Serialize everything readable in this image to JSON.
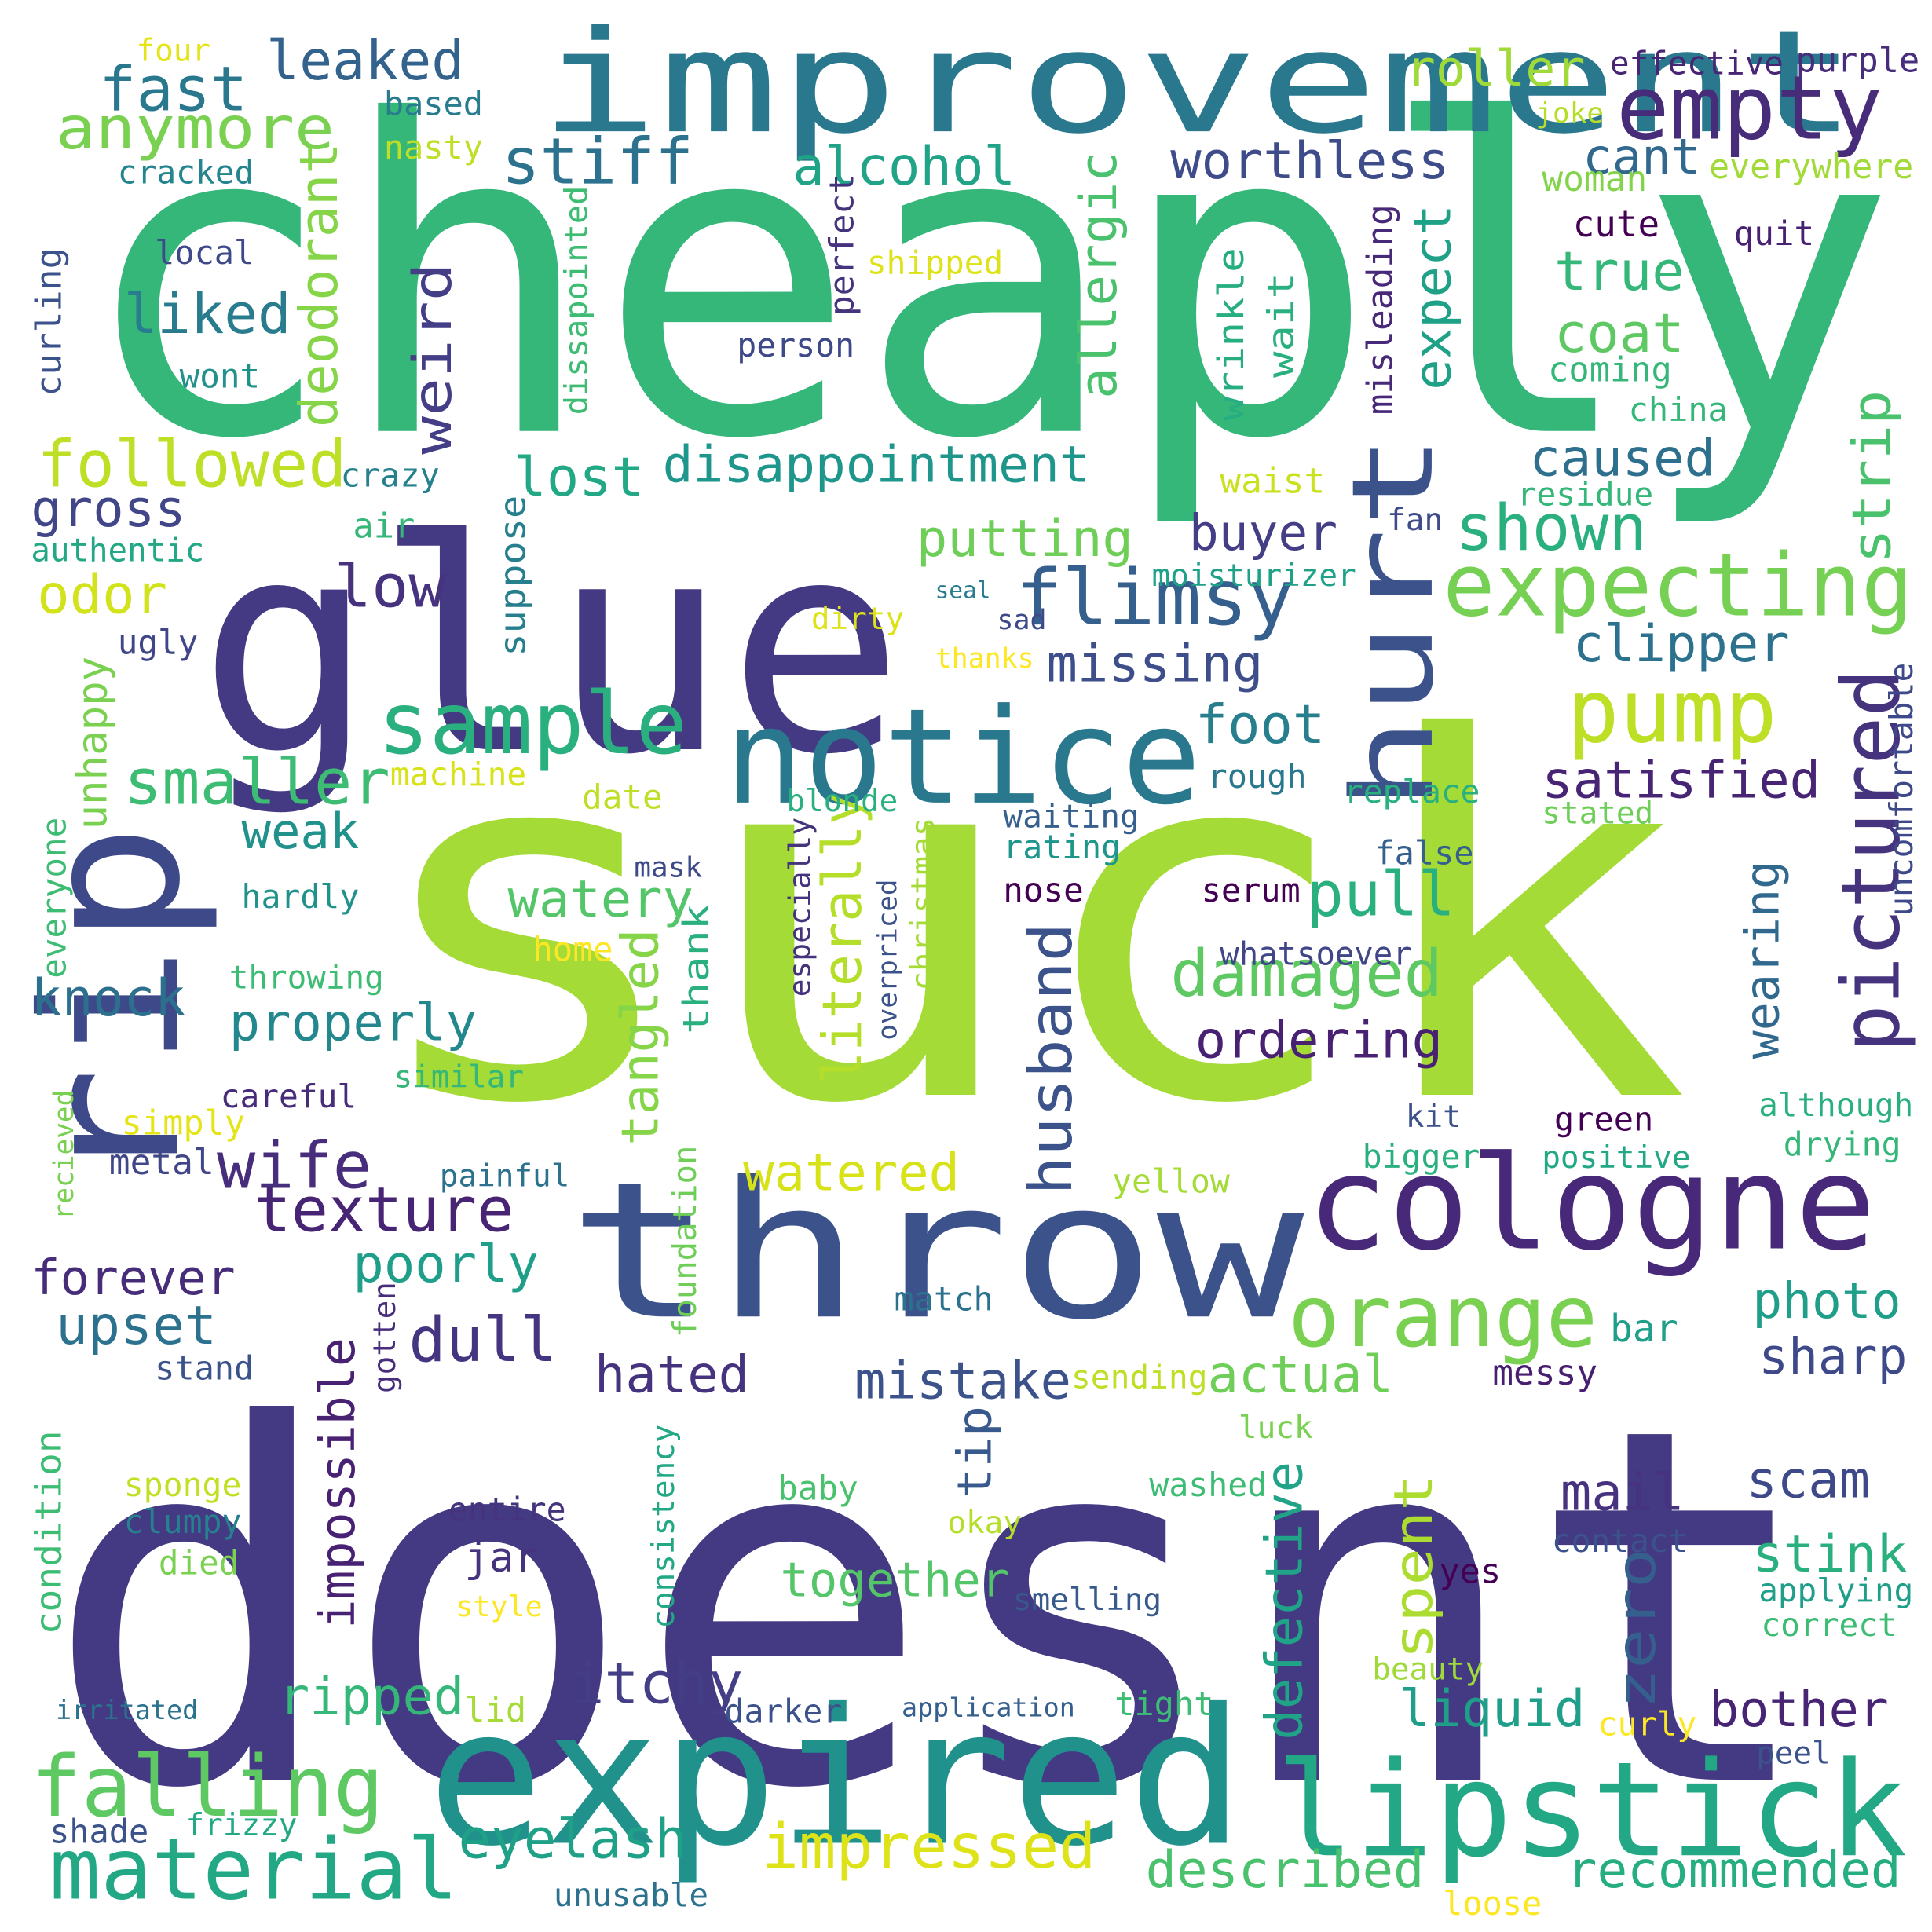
{
  "words": [
    {
      "text": "cheaply",
      "color": "#35b779"
    },
    {
      "text": "suck",
      "color": "#a5db36"
    },
    {
      "text": "doesnt",
      "color": "#443983"
    },
    {
      "text": "glue",
      "color": "#443983"
    },
    {
      "text": "improvement",
      "color": "#2a788e"
    },
    {
      "text": "throw",
      "color": "#3b528b"
    },
    {
      "text": "rip",
      "color": "#3e4989"
    },
    {
      "text": "expired",
      "color": "#21918c"
    },
    {
      "text": "lipstick",
      "color": "#22a884"
    },
    {
      "text": "notice",
      "color": "#2a788e"
    },
    {
      "text": "cologne",
      "color": "#482878"
    },
    {
      "text": "hurt",
      "color": "#3b528b"
    },
    {
      "text": "empty",
      "color": "#472c7a"
    },
    {
      "text": "orange",
      "color": "#7ad151"
    },
    {
      "text": "expecting",
      "color": "#75d054"
    },
    {
      "text": "flimsy",
      "color": "#355f8d"
    },
    {
      "text": "sample",
      "color": "#2ab07f"
    },
    {
      "text": "pump",
      "color": "#bddf26"
    },
    {
      "text": "pictured",
      "color": "#46337e"
    },
    {
      "text": "falling",
      "color": "#5ec962"
    },
    {
      "text": "material",
      "color": "#22a884"
    },
    {
      "text": "fast",
      "color": "#2a788e"
    },
    {
      "text": "anymore",
      "color": "#7ad151"
    },
    {
      "text": "leaked",
      "color": "#33638d"
    },
    {
      "text": "followed",
      "color": "#bddf26"
    },
    {
      "text": "liked",
      "color": "#287c8e"
    },
    {
      "text": "deodorant",
      "color": "#86d549"
    },
    {
      "text": "weird",
      "color": "#433e85"
    },
    {
      "text": "stiff",
      "color": "#2c728e"
    },
    {
      "text": "alcohol",
      "color": "#20a386"
    },
    {
      "text": "allergic",
      "color": "#4ac16d"
    },
    {
      "text": "worthless",
      "color": "#3e4c8a"
    },
    {
      "text": "cant",
      "color": "#31688e"
    },
    {
      "text": "roller",
      "color": "#9fda3a"
    },
    {
      "text": "true",
      "color": "#35b779"
    },
    {
      "text": "expect",
      "color": "#1fa188"
    },
    {
      "text": "coat",
      "color": "#5ec962"
    },
    {
      "text": "disappointment",
      "color": "#1f968b"
    },
    {
      "text": "lost",
      "color": "#22a884"
    },
    {
      "text": "gross",
      "color": "#404688"
    },
    {
      "text": "caused",
      "color": "#2d708e"
    },
    {
      "text": "shown",
      "color": "#2ab07f"
    },
    {
      "text": "strip",
      "color": "#4ac16d"
    },
    {
      "text": "putting",
      "color": "#6ece58"
    },
    {
      "text": "buyer",
      "color": "#433e85"
    },
    {
      "text": "clipper",
      "color": "#2c728e"
    },
    {
      "text": "missing",
      "color": "#3d4e8a"
    },
    {
      "text": "low",
      "color": "#46327e"
    },
    {
      "text": "odor",
      "color": "#d2e21b"
    },
    {
      "text": "unhappy",
      "color": "#7ad151"
    },
    {
      "text": "smaller",
      "color": "#3dbc74"
    },
    {
      "text": "weak",
      "color": "#21918c"
    },
    {
      "text": "foot",
      "color": "#277f8e"
    },
    {
      "text": "satisfied",
      "color": "#482475"
    },
    {
      "text": "pull",
      "color": "#2ab07f"
    },
    {
      "text": "watery",
      "color": "#54c568"
    },
    {
      "text": "damaged",
      "color": "#5ec962"
    },
    {
      "text": "husband",
      "color": "#3b528b"
    },
    {
      "text": "literally",
      "color": "#b5de2b"
    },
    {
      "text": "wearing",
      "color": "#31688e"
    },
    {
      "text": "knock",
      "color": "#2d708e"
    },
    {
      "text": "properly",
      "color": "#23888e"
    },
    {
      "text": "tangled",
      "color": "#86d549"
    },
    {
      "text": "ordering",
      "color": "#482173"
    },
    {
      "text": "wife",
      "color": "#472d7b"
    },
    {
      "text": "texture",
      "color": "#482475"
    },
    {
      "text": "watered",
      "color": "#d8e219"
    },
    {
      "text": "forever",
      "color": "#472c7a"
    },
    {
      "text": "poorly",
      "color": "#1f9e89"
    },
    {
      "text": "dull",
      "color": "#453581"
    },
    {
      "text": "upset",
      "color": "#2c728e"
    },
    {
      "text": "hated",
      "color": "#46337e"
    },
    {
      "text": "mistake",
      "color": "#3b528b"
    },
    {
      "text": "actual",
      "color": "#6ece58"
    },
    {
      "text": "impossible",
      "color": "#482173"
    },
    {
      "text": "tip",
      "color": "#38598c"
    },
    {
      "text": "photo",
      "color": "#1f9e89"
    },
    {
      "text": "sharp",
      "color": "#3e4989"
    },
    {
      "text": "scam",
      "color": "#3e4989"
    },
    {
      "text": "mail",
      "color": "#46327e"
    },
    {
      "text": "defective",
      "color": "#20a386"
    },
    {
      "text": "spent",
      "color": "#addc30"
    },
    {
      "text": "zero",
      "color": "#355f8d"
    },
    {
      "text": "jar",
      "color": "#46337e"
    },
    {
      "text": "together",
      "color": "#54c568"
    },
    {
      "text": "stink",
      "color": "#2ab07f"
    },
    {
      "text": "ripped",
      "color": "#35b779"
    },
    {
      "text": "itchy",
      "color": "#433e85"
    },
    {
      "text": "liquid",
      "color": "#1f9e89"
    },
    {
      "text": "bother",
      "color": "#482475"
    },
    {
      "text": "eyelash",
      "color": "#1fa188"
    },
    {
      "text": "impressed",
      "color": "#dde318"
    },
    {
      "text": "described",
      "color": "#4ac16d"
    },
    {
      "text": "recommended",
      "color": "#26ad81"
    },
    {
      "text": "four",
      "color": "#e5e419"
    },
    {
      "text": "based",
      "color": "#287c8e"
    },
    {
      "text": "nasty",
      "color": "#bddf26"
    },
    {
      "text": "cracked",
      "color": "#25858e"
    },
    {
      "text": "local",
      "color": "#3e4989"
    },
    {
      "text": "curling",
      "color": "#3b528b"
    },
    {
      "text": "wont",
      "color": "#21918c"
    },
    {
      "text": "dissapointed",
      "color": "#3fbc73"
    },
    {
      "text": "perfect",
      "color": "#46337e"
    },
    {
      "text": "shipped",
      "color": "#dde318"
    },
    {
      "text": "person",
      "color": "#3e4989"
    },
    {
      "text": "effective",
      "color": "#482475"
    },
    {
      "text": "purple",
      "color": "#472d7b"
    },
    {
      "text": "joke",
      "color": "#b5de2b"
    },
    {
      "text": "woman",
      "color": "#84d44b"
    },
    {
      "text": "everywhere",
      "color": "#a2da37"
    },
    {
      "text": "cute",
      "color": "#440154"
    },
    {
      "text": "quit",
      "color": "#482173"
    },
    {
      "text": "wrinkle",
      "color": "#26ad81"
    },
    {
      "text": "wait",
      "color": "#2ab07f"
    },
    {
      "text": "misleading",
      "color": "#482878"
    },
    {
      "text": "coming",
      "color": "#35b779"
    },
    {
      "text": "china",
      "color": "#35b779"
    },
    {
      "text": "crazy",
      "color": "#27808e"
    },
    {
      "text": "air",
      "color": "#35b779"
    },
    {
      "text": "authentic",
      "color": "#22a884"
    },
    {
      "text": "suppose",
      "color": "#277f8e"
    },
    {
      "text": "waist",
      "color": "#cae11f"
    },
    {
      "text": "fan",
      "color": "#3e4c8a"
    },
    {
      "text": "residue",
      "color": "#35b779"
    },
    {
      "text": "moisturizer",
      "color": "#1fa188"
    },
    {
      "text": "seal",
      "color": "#287c8e"
    },
    {
      "text": "sad",
      "color": "#3e4989"
    },
    {
      "text": "dirty",
      "color": "#dde318"
    },
    {
      "text": "thanks",
      "color": "#fde725"
    },
    {
      "text": "ugly",
      "color": "#404688"
    },
    {
      "text": "machine",
      "color": "#d8e219"
    },
    {
      "text": "date",
      "color": "#bddf26"
    },
    {
      "text": "blonde",
      "color": "#2ab07f"
    },
    {
      "text": "rough",
      "color": "#2a788e"
    },
    {
      "text": "replace",
      "color": "#2ab07f"
    },
    {
      "text": "stated",
      "color": "#6ece58"
    },
    {
      "text": "uncomfortable",
      "color": "#3e4989"
    },
    {
      "text": "waiting",
      "color": "#355f8d"
    },
    {
      "text": "rating",
      "color": "#1f968b"
    },
    {
      "text": "mask",
      "color": "#3e4989"
    },
    {
      "text": "nose",
      "color": "#440154"
    },
    {
      "text": "false",
      "color": "#355f8d"
    },
    {
      "text": "serum",
      "color": "#440154"
    },
    {
      "text": "everyone",
      "color": "#3dbc74"
    },
    {
      "text": "hardly",
      "color": "#21918c"
    },
    {
      "text": "especially",
      "color": "#46337e"
    },
    {
      "text": "christmas",
      "color": "#a5db36"
    },
    {
      "text": "overpriced",
      "color": "#3b528b"
    },
    {
      "text": "home",
      "color": "#fde725"
    },
    {
      "text": "thank",
      "color": "#2ab07f"
    },
    {
      "text": "whatsoever",
      "color": "#404688"
    },
    {
      "text": "throwing",
      "color": "#3dbc74"
    },
    {
      "text": "similar",
      "color": "#35b779"
    },
    {
      "text": "careful",
      "color": "#472c7a"
    },
    {
      "text": "although",
      "color": "#2ab07f"
    },
    {
      "text": "simply",
      "color": "#e5e419"
    },
    {
      "text": "green",
      "color": "#440154"
    },
    {
      "text": "recieved",
      "color": "#7ad151"
    },
    {
      "text": "kit",
      "color": "#3b528b"
    },
    {
      "text": "metal",
      "color": "#404688"
    },
    {
      "text": "bigger",
      "color": "#2ab07f"
    },
    {
      "text": "positive",
      "color": "#22a884"
    },
    {
      "text": "drying",
      "color": "#35b779"
    },
    {
      "text": "painful",
      "color": "#2c728e"
    },
    {
      "text": "yellow",
      "color": "#a5db36"
    },
    {
      "text": "foundation",
      "color": "#6ece58"
    },
    {
      "text": "match",
      "color": "#2c728e"
    },
    {
      "text": "gotten",
      "color": "#472d7b"
    },
    {
      "text": "bar",
      "color": "#1f9e89"
    },
    {
      "text": "stand",
      "color": "#3b528b"
    },
    {
      "text": "sending",
      "color": "#bddf26"
    },
    {
      "text": "messy",
      "color": "#481f70"
    },
    {
      "text": "luck",
      "color": "#7ad151"
    },
    {
      "text": "condition",
      "color": "#3dbc74"
    },
    {
      "text": "sponge",
      "color": "#c2df23"
    },
    {
      "text": "clumpy",
      "color": "#27808e"
    },
    {
      "text": "died",
      "color": "#7ad151"
    },
    {
      "text": "baby",
      "color": "#4ac16d"
    },
    {
      "text": "consistency",
      "color": "#22a884"
    },
    {
      "text": "entire",
      "color": "#46337e"
    },
    {
      "text": "washed",
      "color": "#3dbc74"
    },
    {
      "text": "okay",
      "color": "#b5de2b"
    },
    {
      "text": "contact",
      "color": "#3b528b"
    },
    {
      "text": "yes",
      "color": "#440154"
    },
    {
      "text": "applying",
      "color": "#1f9e89"
    },
    {
      "text": "correct",
      "color": "#3dbc74"
    },
    {
      "text": "style",
      "color": "#fde725"
    },
    {
      "text": "smelling",
      "color": "#38598c"
    },
    {
      "text": "beauty",
      "color": "#9fda3a"
    },
    {
      "text": "irritated",
      "color": "#2c728e"
    },
    {
      "text": "lid",
      "color": "#a5db36"
    },
    {
      "text": "darker",
      "color": "#3b528b"
    },
    {
      "text": "application",
      "color": "#355f8d"
    },
    {
      "text": "tight",
      "color": "#3dbc74"
    },
    {
      "text": "curly",
      "color": "#fde725"
    },
    {
      "text": "peel",
      "color": "#3b528b"
    },
    {
      "text": "shade",
      "color": "#3b528b"
    },
    {
      "text": "frizzy",
      "color": "#22a884"
    },
    {
      "text": "unusable",
      "color": "#2c728e"
    },
    {
      "text": "loose",
      "color": "#fde725"
    }
  ]
}
